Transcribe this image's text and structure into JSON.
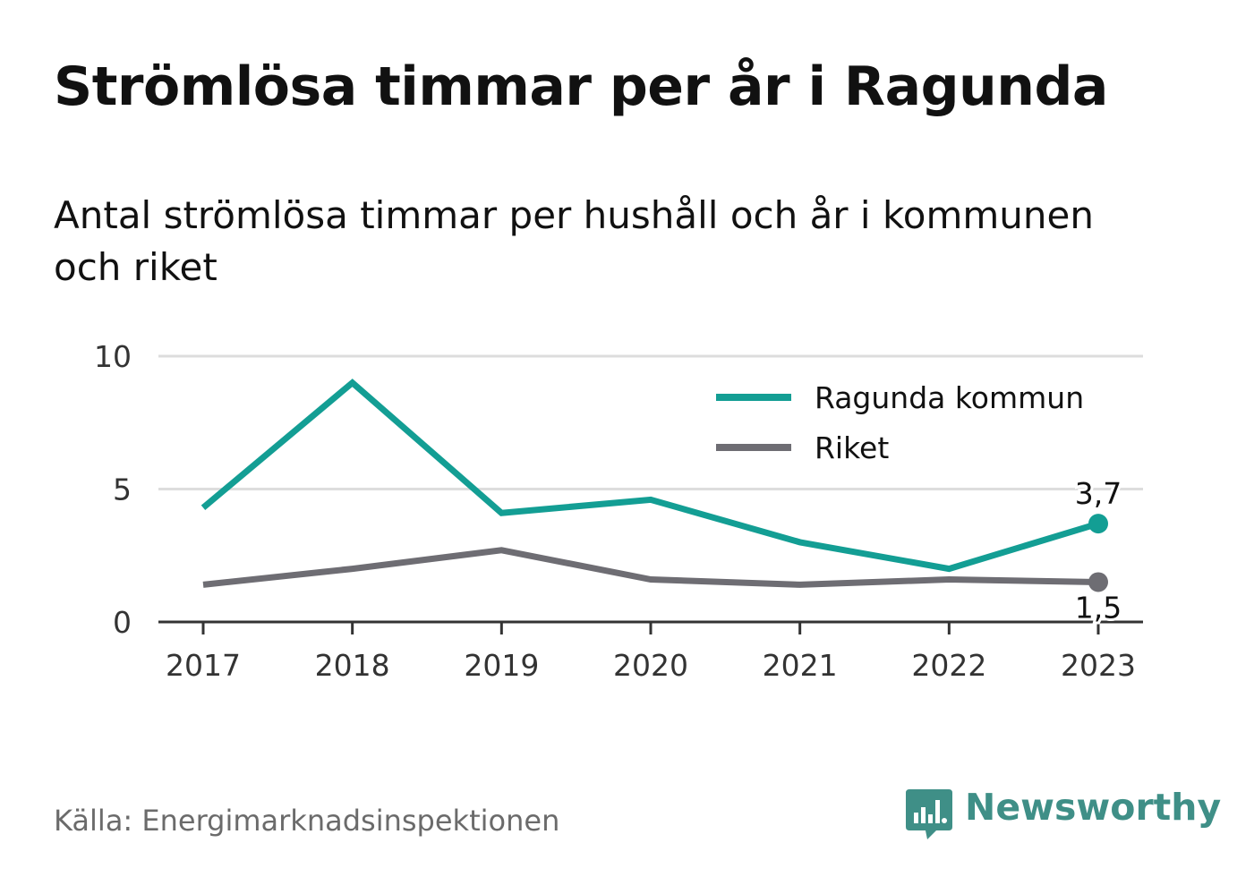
{
  "header": {
    "title": "Strömlösa timmar per år i Ragunda",
    "subtitle": "Antal strömlösa timmar per hushåll och år i kommunen och riket"
  },
  "footer": {
    "source": "Källa: Energimarknadsinspektionen",
    "brand": "Newsworthy"
  },
  "colors": {
    "ragunda": "#139e94",
    "riket": "#6e6d73",
    "grid": "#dddddd",
    "axis": "#333333",
    "brand": "#3f8f87"
  },
  "chart_data": {
    "type": "line",
    "x": [
      "2017",
      "2018",
      "2019",
      "2020",
      "2021",
      "2022",
      "2023"
    ],
    "ylim": [
      0,
      10
    ],
    "yticks": [
      0,
      5,
      10
    ],
    "grid": true,
    "legend_position": "top-right",
    "series": [
      {
        "name": "Ragunda kommun",
        "values": [
          4.3,
          9.0,
          4.1,
          4.6,
          3.0,
          2.0,
          3.7
        ],
        "end_label": "3,7"
      },
      {
        "name": "Riket",
        "values": [
          1.4,
          2.0,
          2.7,
          1.6,
          1.4,
          1.6,
          1.5
        ],
        "end_label": "1,5"
      }
    ]
  }
}
